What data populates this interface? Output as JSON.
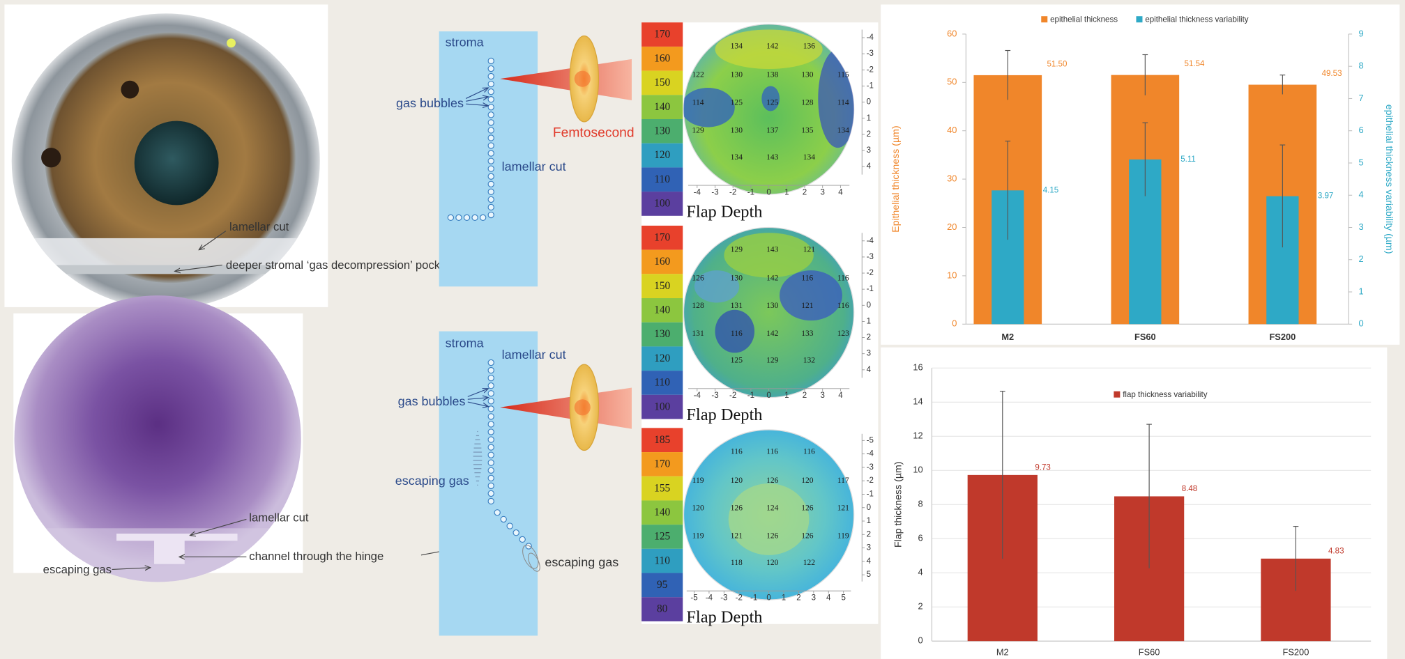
{
  "photos": {
    "eye": {
      "labels": [
        "lamellar cut",
        "deeper stromal ‘gas decompression’ pocket"
      ]
    },
    "stain": {
      "labels": [
        "lamellar cut",
        "channel through the hinge",
        "escaping gas"
      ]
    }
  },
  "diagram_top": {
    "stroma": "stroma",
    "gas_bubbles": "gas bubbles",
    "lamellar_cut": "lamellar cut",
    "laser": "Femtosecond"
  },
  "diagram_bottom": {
    "stroma": "stroma",
    "lamellar_cut": "lamellar cut",
    "gas_bubbles": "gas bubbles",
    "escaping_gas": [
      "escaping gas",
      "escaping gas"
    ]
  },
  "maps": [
    {
      "scale": [
        170,
        160,
        150,
        140,
        130,
        120,
        110,
        100
      ],
      "rows": [
        [
          134,
          142,
          136
        ],
        [
          122,
          130,
          138,
          130,
          115
        ],
        [
          114,
          125,
          125,
          128,
          114
        ],
        [
          129,
          130,
          137,
          135,
          134
        ],
        [
          134,
          143,
          134
        ]
      ],
      "xticks": [
        -4,
        -3,
        -2,
        -1,
        0,
        1,
        2,
        3,
        4
      ],
      "yticks": [
        -4,
        -3,
        -2,
        -1,
        0,
        1,
        2,
        3,
        4
      ],
      "label": "Flap Depth"
    },
    {
      "scale": [
        170,
        160,
        150,
        140,
        130,
        120,
        110,
        100
      ],
      "rows": [
        [
          129,
          143,
          121
        ],
        [
          126,
          130,
          142,
          116,
          116
        ],
        [
          128,
          131,
          130,
          121,
          116
        ],
        [
          131,
          116,
          142,
          133,
          123
        ],
        [
          125,
          129,
          132
        ]
      ],
      "xticks": [
        -4,
        -3,
        -2,
        -1,
        0,
        1,
        2,
        3,
        4
      ],
      "yticks": [
        -4,
        -3,
        -2,
        -1,
        0,
        1,
        2,
        3,
        4
      ],
      "label": "Flap Depth"
    },
    {
      "scale": [
        185,
        170,
        155,
        140,
        125,
        110,
        95,
        80
      ],
      "rows": [
        [
          116,
          116,
          116
        ],
        [
          119,
          120,
          126,
          120,
          117
        ],
        [
          120,
          126,
          124,
          126,
          121
        ],
        [
          119,
          121,
          126,
          126,
          119
        ],
        [
          118,
          120,
          122
        ]
      ],
      "xticks": [
        -5,
        -4,
        -3,
        -2,
        -1,
        0,
        1,
        2,
        3,
        4,
        5
      ],
      "yticks": [
        -5,
        -4,
        -3,
        -2,
        -1,
        0,
        1,
        2,
        3,
        4,
        5
      ],
      "label": "Flap Depth"
    }
  ],
  "chart_data": [
    {
      "type": "bar",
      "categories": [
        "M2",
        "FS60",
        "FS200"
      ],
      "series": [
        {
          "name": "epithelial thickness",
          "color": "#f0862a",
          "values": [
            51.5,
            51.54,
            49.53
          ],
          "value_labels": [
            "51.50",
            "51.54",
            "49.53"
          ],
          "errors": [
            5.1,
            4.2,
            2.0
          ]
        },
        {
          "name": "epithelial thickness variability",
          "color": "#2ea9c6",
          "axis": "y2",
          "values": [
            4.15,
            5.11,
            3.97
          ],
          "errors": [
            1.53,
            1.14,
            1.59
          ]
        }
      ],
      "y_label": "Epithelial  thickness (µm)",
      "y2_label": "epithelial thickness variability (µm)",
      "ylim": [
        0,
        60
      ],
      "yticks": [
        0,
        10,
        20,
        30,
        40,
        50,
        60
      ],
      "y2lim": [
        0,
        9
      ],
      "y2ticks": [
        0,
        1,
        2,
        3,
        4,
        5,
        6,
        7,
        8,
        9
      ],
      "grid": false,
      "legend": "top"
    },
    {
      "type": "bar",
      "categories": [
        "M2",
        "FS60",
        "FS200"
      ],
      "series": [
        {
          "name": "flap thickness variability",
          "color": "#c0392b",
          "values": [
            9.73,
            8.48,
            4.83
          ],
          "errors": [
            4.91,
            4.22,
            1.89
          ]
        }
      ],
      "y_label": "Flap thickness (µm)",
      "ylim": [
        0,
        16
      ],
      "yticks": [
        0,
        2,
        4,
        6,
        8,
        10,
        12,
        14,
        16
      ],
      "grid": true,
      "legend": "top"
    }
  ]
}
